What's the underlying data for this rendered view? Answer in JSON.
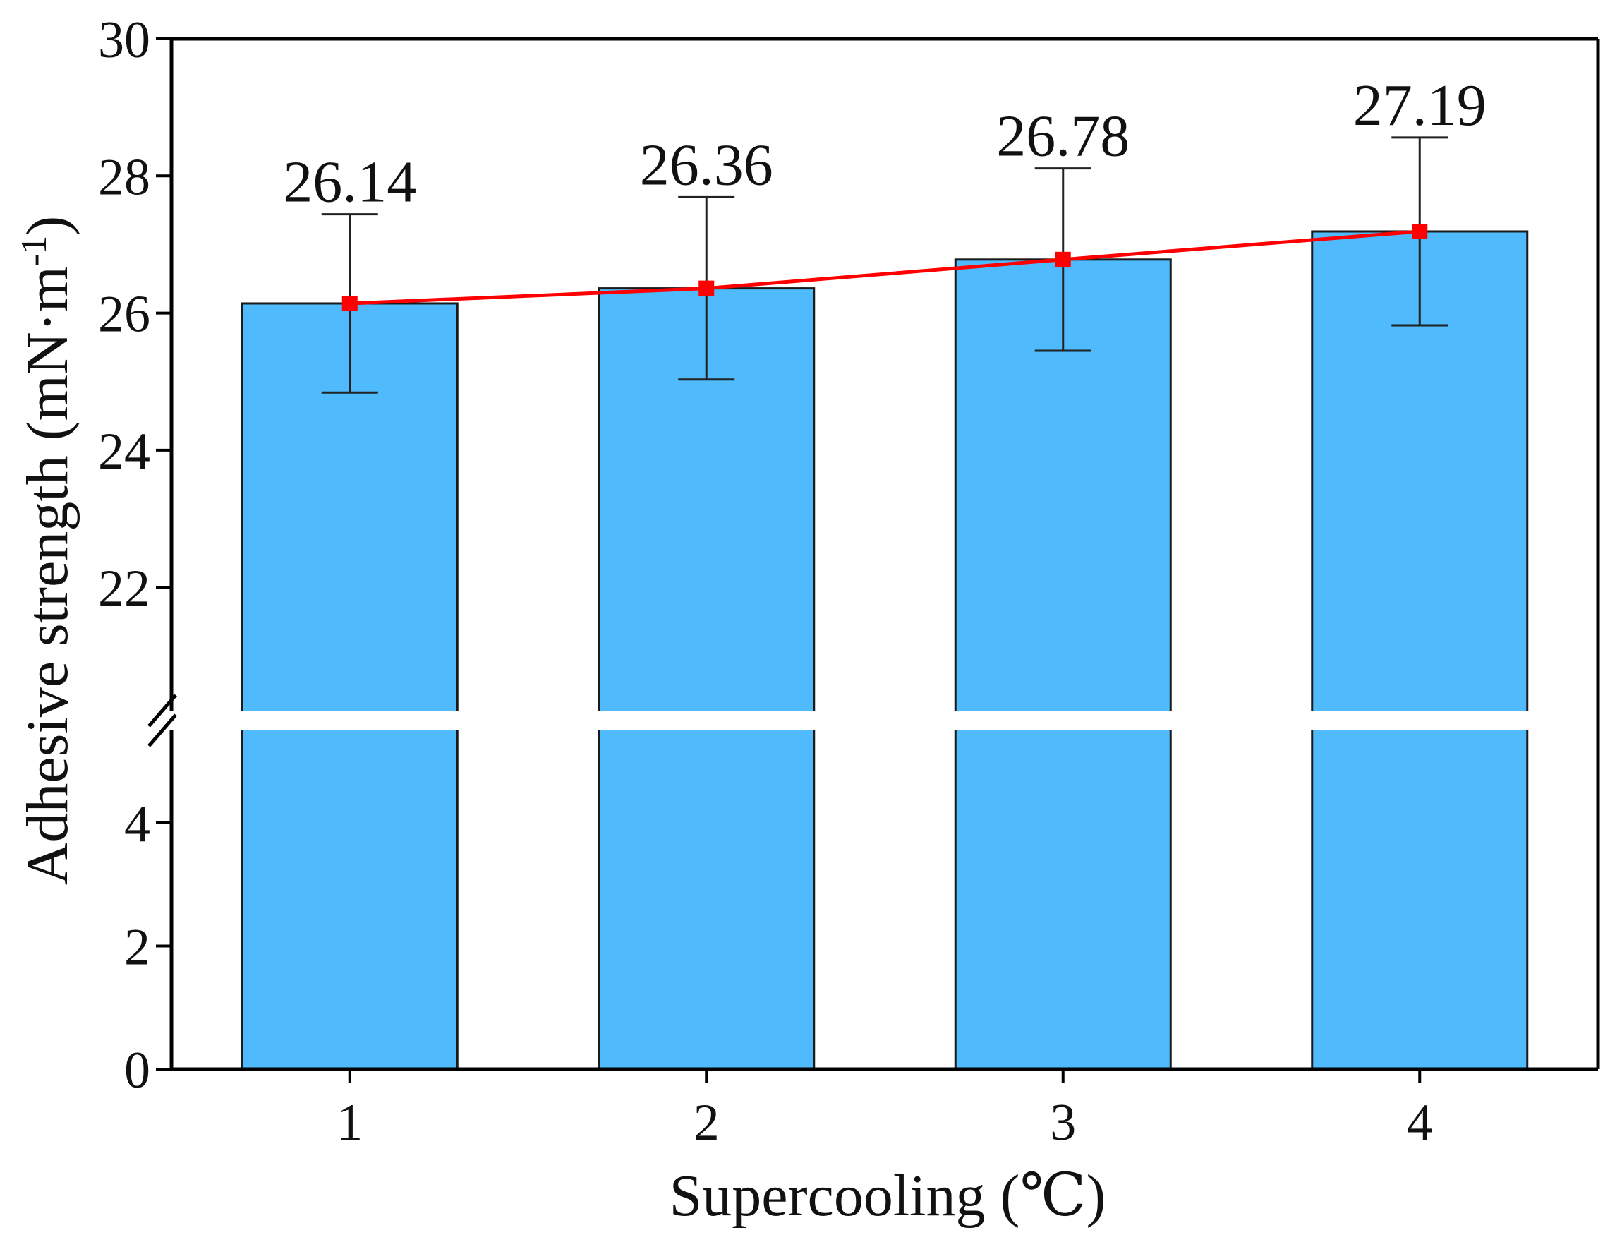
{
  "chart_data": {
    "type": "bar",
    "title": "",
    "xlabel": "Supercooling (℃)",
    "ylabel": {
      "main": "Adhesive strength (mN·m",
      "superscript": "-1",
      "close": ")"
    },
    "categories": [
      "1",
      "2",
      "3",
      "4"
    ],
    "values": [
      26.14,
      26.36,
      26.78,
      27.19
    ],
    "value_labels": [
      "26.14",
      "26.36",
      "26.78",
      "27.19"
    ],
    "errors": [
      1.3,
      1.33,
      1.33,
      1.37
    ],
    "line_overlay": true,
    "y_axis_break": true,
    "y_segments": [
      {
        "range": [
          0,
          5.5
        ],
        "ticks": [
          0,
          2,
          4
        ],
        "tick_labels": [
          "0",
          "2",
          "4"
        ]
      },
      {
        "range": [
          20.2,
          30
        ],
        "ticks": [
          22,
          24,
          26,
          28,
          30
        ],
        "tick_labels": [
          "22",
          "24",
          "26",
          "28",
          "30"
        ]
      }
    ],
    "grid": false,
    "legend": "none",
    "colors": {
      "bar_fill": "#4FBAFC",
      "bar_stroke": "#1a1a1a",
      "line": "#FF0000",
      "marker": "#FF0000",
      "axis": "#000000"
    }
  }
}
